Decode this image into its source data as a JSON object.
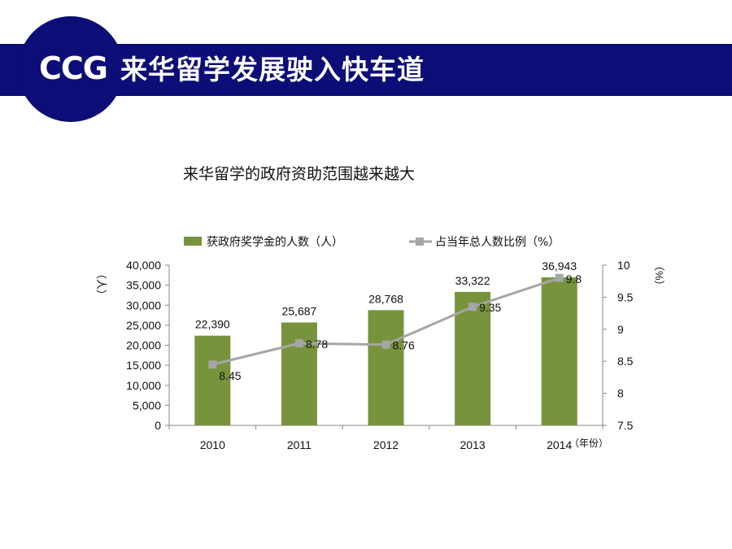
{
  "header": {
    "logo": "CCG",
    "title": "来华留学发展驶入快车道",
    "color": "#0d0d78"
  },
  "chart_data": {
    "type": "bar",
    "title": "来华留学的政府资助范围越来越大",
    "categories": [
      "2010",
      "2011",
      "2012",
      "2013",
      "2014"
    ],
    "x_unit": "（年份）",
    "series": [
      {
        "name": "获政府奖学金的人数（人）",
        "type": "bar",
        "axis": "left",
        "color": "#77933c",
        "values": [
          22390,
          25687,
          28768,
          33322,
          36943
        ],
        "labels": [
          "22,390",
          "25,687",
          "28,768",
          "33,322",
          "36,943"
        ]
      },
      {
        "name": "占当年总人数比例（%）",
        "type": "line",
        "axis": "right",
        "color": "#a6a6a6",
        "values": [
          8.45,
          8.78,
          8.76,
          9.35,
          9.8
        ],
        "labels": [
          "8.45",
          "8.78",
          "8.76",
          "9.35",
          "9.8"
        ]
      }
    ],
    "y_left": {
      "unit": "（人）",
      "ylim": [
        0,
        40000
      ],
      "ticks": [
        "0",
        "5,000",
        "10,000",
        "15,000",
        "20,000",
        "25,000",
        "30,000",
        "35,000",
        "40,000"
      ]
    },
    "y_right": {
      "unit": "（%）",
      "ylim": [
        7.5,
        10
      ],
      "ticks": [
        "7.5",
        "8",
        "8.5",
        "9",
        "9.5",
        "10"
      ]
    },
    "legend_position": "top",
    "grid": false
  }
}
